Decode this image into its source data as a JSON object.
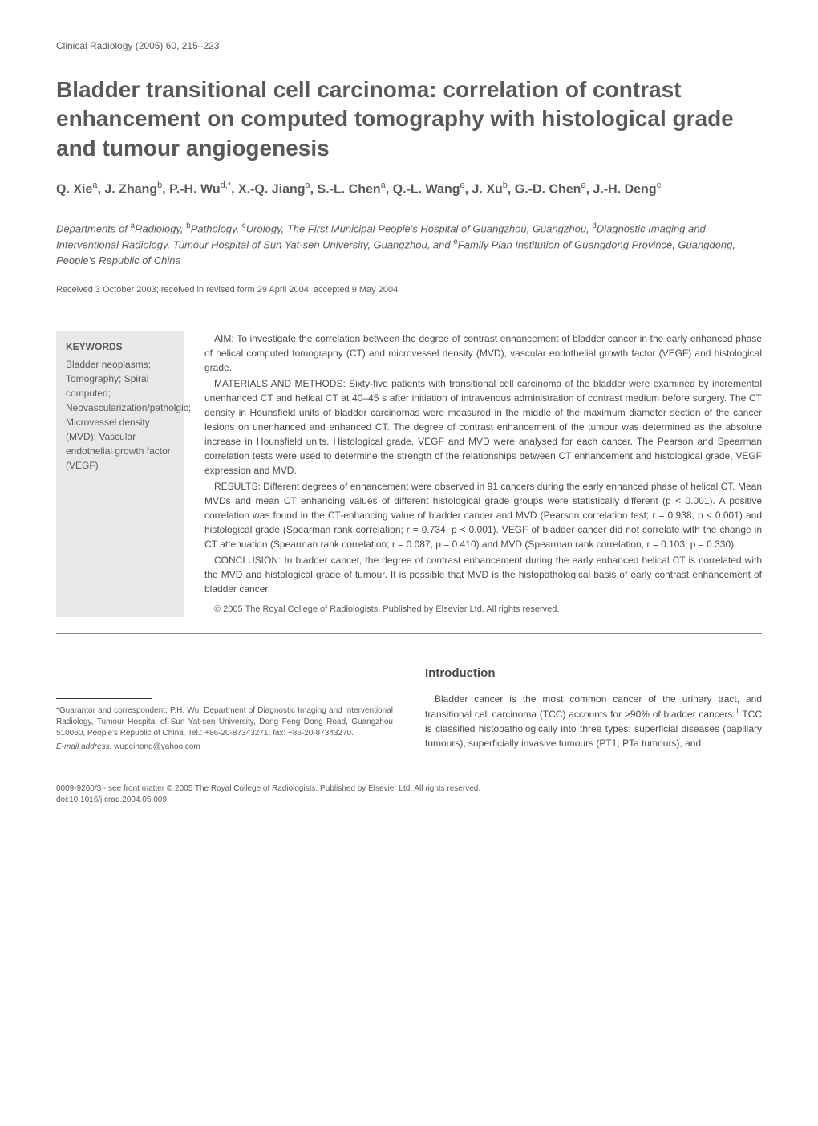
{
  "journal": {
    "citation": "Clinical Radiology (2005) 60, 215–223"
  },
  "title": "Bladder transitional cell carcinoma: correlation of contrast enhancement on computed tomography with histological grade and tumour angiogenesis",
  "authors_html": "Q. Xie<sup>a</sup>, J. Zhang<sup>b</sup>, P.-H. Wu<sup>d,*</sup>, X.-Q. Jiang<sup>a</sup>, S.-L. Chen<sup>a</sup>, Q.-L. Wang<sup>e</sup>, J. Xu<sup>b</sup>, G.-D. Chen<sup>a</sup>, J.-H. Deng<sup>c</sup>",
  "affiliations_html": "Departments of <sup>a</sup>Radiology, <sup>b</sup>Pathology, <sup>c</sup>Urology, The First Municipal People's Hospital of Guangzhou, Guangzhou, <sup>d</sup>Diagnostic Imaging and Interventional Radiology, Tumour Hospital of Sun Yat-sen University, Guangzhou, and <sup>e</sup>Family Plan Institution of Guangdong Province, Guangdong, People's Republic of China",
  "dates": "Received 3 October 2003; received in revised form 29 April 2004; accepted 9 May 2004",
  "keywords": {
    "heading": "KEYWORDS",
    "list": "Bladder neoplasms; Tomography; Spiral computed; Neovascularization/patholgic; Microvessel density (MVD); Vascular endothelial growth factor (VEGF)"
  },
  "abstract": {
    "aim": "AIM: To investigate the correlation between the degree of contrast enhancement of bladder cancer in the early enhanced phase of helical computed tomography (CT) and microvessel density (MVD), vascular endothelial growth factor (VEGF) and histological grade.",
    "materials": "MATERIALS AND METHODS: Sixty-five patients with transitional cell carcinoma of the bladder were examined by incremental unenhanced CT and helical CT at 40–45 s after initiation of intravenous administration of contrast medium before surgery. The CT density in Hounsfield units of bladder carcinomas were measured in the middle of the maximum diameter section of the cancer lesions on unenhanced and enhanced CT. The degree of contrast enhancement of the tumour was determined as the absolute increase in Hounsfield units. Histological grade, VEGF and MVD were analysed for each cancer. The Pearson and Spearman correlation tests were used to determine the strength of the relationships between CT enhancement and histological grade, VEGF expression and MVD.",
    "results": "RESULTS: Different degrees of enhancement were observed in 91 cancers during the early enhanced phase of helical CT. Mean MVDs and mean CT enhancing values of different histological grade groups were statistically different (p < 0.001). A positive correlation was found in the CT-enhancing value of bladder cancer and MVD (Pearson correlation test; r = 0.938, p < 0.001) and histological grade (Spearman rank correlation; r = 0.734, p < 0.001). VEGF of bladder cancer did not correlate with the change in CT attenuation (Spearman rank correlation; r = 0.087, p = 0.410) and MVD (Spearman rank correlation, r = 0.103, p = 0.330).",
    "conclusion": "CONCLUSION: In bladder cancer, the degree of contrast enhancement during the early enhanced helical CT is correlated with the MVD and histological grade of tumour. It is possible that MVD is the histopathological basis of early contrast enhancement of bladder cancer.",
    "copyright": "© 2005 The Royal College of Radiologists. Published by Elsevier Ltd. All rights reserved."
  },
  "footnote": {
    "text": "*Guarantor and correspondent: P.H. Wu, Department of Diagnostic Imaging and Interventional Radiology, Tumour Hospital of Sun Yat-sen University, Dong Feng Dong Road, Guangzhou 510060, People's Republic of China. Tel.: +86-20-87343271; fax: +86-20-87343270.",
    "email_label": "E-mail address:",
    "email": "wupeihong@yahoo.com"
  },
  "introduction": {
    "heading": "Introduction",
    "text_html": "Bladder cancer is the most common cancer of the urinary tract, and transitional cell carcinoma (TCC) accounts for >90% of bladder cancers.<sup>1</sup> TCC is classified histopathologically into three types: superficial diseases (papillary tumours), superficially invasive tumours (PT1, PTa tumours), and"
  },
  "footer": {
    "issn": "0009-9260/$ - see front matter © 2005 The Royal College of Radiologists. Published by Elsevier Ltd. All rights reserved.",
    "doi": "doi:10.1016/j.crad.2004.05.009"
  },
  "colors": {
    "text_primary": "#4a4a4a",
    "text_secondary": "#5a5a5a",
    "background": "#ffffff",
    "keywords_bg": "#e8e8e8",
    "border": "#888888"
  },
  "typography": {
    "title_fontsize": 28,
    "body_fontsize": 12,
    "footnote_fontsize": 10,
    "section_heading_fontsize": 15
  }
}
